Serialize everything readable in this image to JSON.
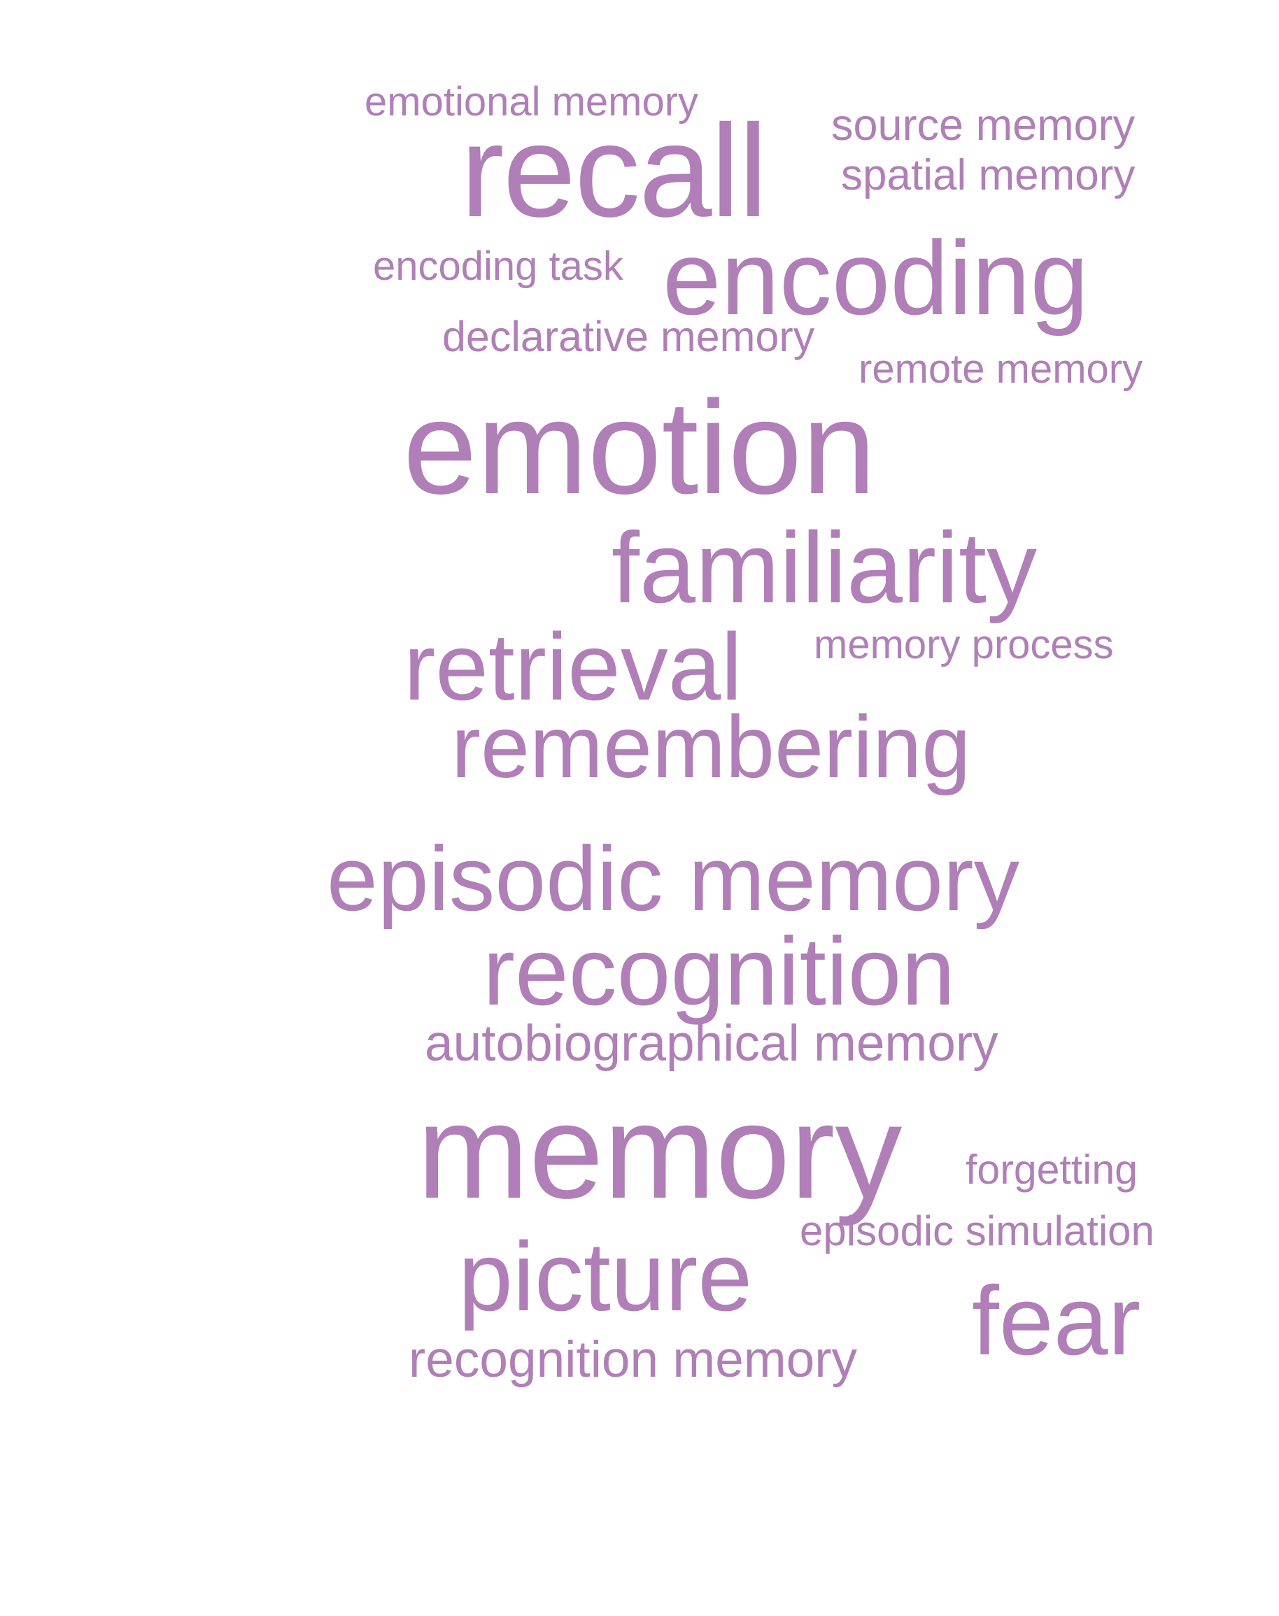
{
  "word_cloud": {
    "color": "#b07fb7",
    "words": [
      {
        "id": "emotional-memory",
        "text": "emotional memory"
      },
      {
        "id": "source-memory",
        "text": "source memory"
      },
      {
        "id": "recall",
        "text": "recall"
      },
      {
        "id": "spatial-memory",
        "text": "spatial memory"
      },
      {
        "id": "encoding-task",
        "text": "encoding task"
      },
      {
        "id": "encoding",
        "text": "encoding"
      },
      {
        "id": "declarative-memory",
        "text": "declarative memory"
      },
      {
        "id": "remote-memory",
        "text": "remote memory"
      },
      {
        "id": "emotion",
        "text": "emotion"
      },
      {
        "id": "familiarity",
        "text": "familiarity"
      },
      {
        "id": "retrieval",
        "text": "retrieval"
      },
      {
        "id": "memory-process",
        "text": "memory process"
      },
      {
        "id": "remembering",
        "text": "remembering"
      },
      {
        "id": "episodic-memory",
        "text": "episodic memory"
      },
      {
        "id": "recognition",
        "text": "recognition"
      },
      {
        "id": "autobiographical-memory",
        "text": "autobiographical memory"
      },
      {
        "id": "memory",
        "text": "memory"
      },
      {
        "id": "forgetting",
        "text": "forgetting"
      },
      {
        "id": "episodic-simulation",
        "text": "episodic simulation"
      },
      {
        "id": "picture",
        "text": "picture"
      },
      {
        "id": "fear",
        "text": "fear"
      },
      {
        "id": "recognition-memory",
        "text": "recognition memory"
      }
    ]
  }
}
